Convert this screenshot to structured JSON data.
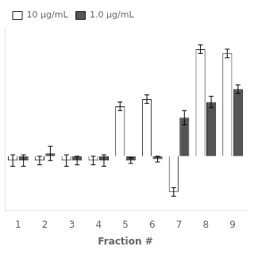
{
  "chart_data": {
    "type": "bar",
    "categories": [
      "1",
      "2",
      "3",
      "4",
      "5",
      "6",
      "7",
      "8",
      "9"
    ],
    "xlabel": "Fraction #",
    "series": [
      {
        "name": "10 μg/mL",
        "color": "#ffffff",
        "values": [
          -3,
          -3,
          -3,
          -3,
          35,
          40,
          -25,
          75,
          72
        ],
        "errors": [
          4,
          3,
          4,
          3,
          3,
          3,
          3,
          3,
          3
        ]
      },
      {
        "name": "1.0 μg/mL",
        "color": "#555555",
        "values": [
          -3,
          2,
          -3,
          -3,
          -3,
          -2,
          27,
          38,
          47
        ],
        "errors": [
          4,
          5,
          3,
          4,
          2,
          2,
          5,
          4,
          3
        ]
      }
    ],
    "ylim": [
      -38,
      90
    ],
    "grid": false,
    "legend": "upper left",
    "tick_labels": "x"
  }
}
